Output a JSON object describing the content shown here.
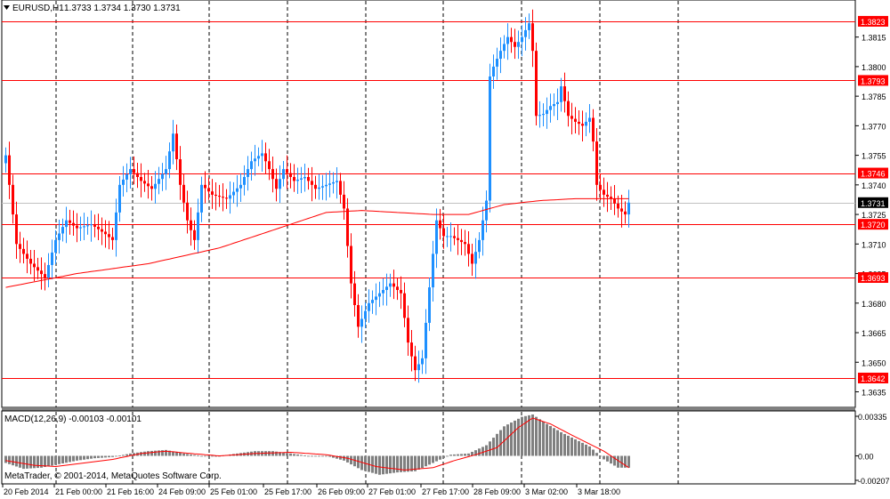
{
  "header": {
    "menu_icon": "triangle-down-icon",
    "symbol": "EURUSD,H1",
    "ohlc": "1.3733 1.3734 1.3730 1.3731"
  },
  "colors": {
    "background": "#ffffff",
    "bull_candle": "#1e90ff",
    "bear_candle": "#ff0000",
    "moving_average": "#ff0000",
    "level_line": "#ff0000",
    "grid": "#000000",
    "current_price_tag": "#000000",
    "current_price_line": "#c0c0c0",
    "macd_histogram": "#808080",
    "macd_signal": "#ff0000"
  },
  "chart_data": [
    {
      "type": "candlestick",
      "series": [
        {
          "name": "EURUSD,H1",
          "type": "candles"
        },
        {
          "type": "moving_average"
        }
      ],
      "ylim": [
        1.3628,
        1.3832
      ],
      "y_ticks": [
        "1.3823",
        "1.3815",
        "1.3800",
        "1.3793",
        "1.3785",
        "1.3770",
        "1.3755",
        "1.3746",
        "1.3740",
        "1.3731",
        "1.3725",
        "1.3720",
        "1.3710",
        "1.3695",
        "1.3693",
        "1.3680",
        "1.3665",
        "1.3650",
        "1.3642",
        "1.3635"
      ],
      "horizontal_levels": [
        1.3823,
        1.3793,
        1.3746,
        1.372,
        1.3693,
        1.3642
      ],
      "current_price": 1.3731,
      "x_tick_labels": [
        "20 Feb 2014",
        "21 Feb 00:00",
        "21 Feb 16:00",
        "24 Feb 09:00",
        "25 Feb 01:00",
        "25 Feb 17:00",
        "26 Feb 09:00",
        "27 Feb 01:00",
        "27 Feb 17:00",
        "28 Feb 09:00",
        "3 Mar 02:00",
        "3 Mar 18:00"
      ],
      "grid": "vertical-dashed",
      "candles_count": 176,
      "candle_anchor_closes": [
        [
          0,
          1.3755
        ],
        [
          3,
          1.371
        ],
        [
          7,
          1.37
        ],
        [
          11,
          1.3693
        ],
        [
          14,
          1.3712
        ],
        [
          17,
          1.3722
        ],
        [
          20,
          1.3718
        ],
        [
          24,
          1.372
        ],
        [
          28,
          1.3715
        ],
        [
          30,
          1.3712
        ],
        [
          32,
          1.374
        ],
        [
          35,
          1.3748
        ],
        [
          38,
          1.3742
        ],
        [
          41,
          1.3738
        ],
        [
          45,
          1.3748
        ],
        [
          47,
          1.3766
        ],
        [
          49,
          1.374
        ],
        [
          51,
          1.3722
        ],
        [
          53,
          1.3712
        ],
        [
          55,
          1.374
        ],
        [
          58,
          1.3735
        ],
        [
          62,
          1.3733
        ],
        [
          66,
          1.374
        ],
        [
          69,
          1.3752
        ],
        [
          72,
          1.3756
        ],
        [
          74,
          1.3748
        ],
        [
          76,
          1.3738
        ],
        [
          78,
          1.3748
        ],
        [
          81,
          1.3742
        ],
        [
          84,
          1.3744
        ],
        [
          87,
          1.3738
        ],
        [
          90,
          1.374
        ],
        [
          93,
          1.3742
        ],
        [
          95,
          1.3728
        ],
        [
          97,
          1.369
        ],
        [
          99,
          1.3668
        ],
        [
          102,
          1.368
        ],
        [
          105,
          1.3685
        ],
        [
          108,
          1.369
        ],
        [
          111,
          1.3685
        ],
        [
          113,
          1.366
        ],
        [
          115,
          1.3646
        ],
        [
          117,
          1.3652
        ],
        [
          119,
          1.3688
        ],
        [
          121,
          1.3722
        ],
        [
          123,
          1.3714
        ],
        [
          125,
          1.3714
        ],
        [
          127,
          1.3712
        ],
        [
          129,
          1.371
        ],
        [
          131,
          1.37
        ],
        [
          133,
          1.3712
        ],
        [
          135,
          1.3732
        ],
        [
          136,
          1.3795
        ],
        [
          137,
          1.38
        ],
        [
          139,
          1.3808
        ],
        [
          141,
          1.3815
        ],
        [
          143,
          1.381
        ],
        [
          145,
          1.3815
        ],
        [
          147,
          1.3822
        ],
        [
          148,
          1.3808
        ],
        [
          149,
          1.3775
        ],
        [
          151,
          1.3776
        ],
        [
          153,
          1.378
        ],
        [
          155,
          1.3782
        ],
        [
          156,
          1.379
        ],
        [
          158,
          1.3775
        ],
        [
          160,
          1.3772
        ],
        [
          162,
          1.377
        ],
        [
          164,
          1.3774
        ],
        [
          165,
          1.3762
        ],
        [
          166,
          1.374
        ],
        [
          168,
          1.3735
        ],
        [
          170,
          1.3733
        ],
        [
          172,
          1.3728
        ],
        [
          174,
          1.3725
        ],
        [
          175,
          1.3731
        ]
      ],
      "moving_average_anchors": [
        [
          0,
          1.3688
        ],
        [
          20,
          1.3695
        ],
        [
          40,
          1.37
        ],
        [
          60,
          1.3708
        ],
        [
          80,
          1.372
        ],
        [
          90,
          1.3726
        ],
        [
          100,
          1.3727
        ],
        [
          110,
          1.3726
        ],
        [
          120,
          1.3725
        ],
        [
          130,
          1.3725
        ],
        [
          140,
          1.373
        ],
        [
          150,
          1.3732
        ],
        [
          160,
          1.3733
        ],
        [
          175,
          1.3733
        ]
      ]
    },
    {
      "type": "histogram",
      "title": "MACD(12,26,9) -0.00103 -0.00101",
      "series": [
        {
          "name": "MACD",
          "type": "bars"
        },
        {
          "name": "Signal",
          "type": "line"
        }
      ],
      "ylim": [
        -0.00207,
        0.00335
      ],
      "y_ticks": [
        "0.00335",
        "0.00",
        "-0.00207"
      ],
      "macd_anchors": [
        [
          0,
          -0.0006
        ],
        [
          5,
          -0.0011
        ],
        [
          10,
          -0.001
        ],
        [
          15,
          -0.0007
        ],
        [
          20,
          -0.0004
        ],
        [
          25,
          -0.0002
        ],
        [
          30,
          -0.0001
        ],
        [
          35,
          0.0002
        ],
        [
          40,
          0.0004
        ],
        [
          45,
          0.0005
        ],
        [
          50,
          0.0002
        ],
        [
          55,
          0.0
        ],
        [
          60,
          0.0
        ],
        [
          65,
          0.0002
        ],
        [
          70,
          0.0004
        ],
        [
          75,
          0.0004
        ],
        [
          80,
          0.0002
        ],
        [
          85,
          0.0
        ],
        [
          90,
          0.0
        ],
        [
          95,
          -0.0004
        ],
        [
          100,
          -0.0012
        ],
        [
          105,
          -0.0016
        ],
        [
          110,
          -0.0014
        ],
        [
          115,
          -0.0013
        ],
        [
          120,
          -0.0006
        ],
        [
          125,
          0.0001
        ],
        [
          130,
          0.0002
        ],
        [
          135,
          0.0009
        ],
        [
          140,
          0.0025
        ],
        [
          145,
          0.0033
        ],
        [
          148,
          0.0035
        ],
        [
          152,
          0.0027
        ],
        [
          156,
          0.002
        ],
        [
          160,
          0.0014
        ],
        [
          164,
          0.0008
        ],
        [
          168,
          -0.0003
        ],
        [
          172,
          -0.001
        ],
        [
          175,
          -0.001
        ]
      ],
      "signal_anchors": [
        [
          0,
          -0.0004
        ],
        [
          8,
          -0.0008
        ],
        [
          14,
          -0.0009
        ],
        [
          22,
          -0.0006
        ],
        [
          30,
          -0.0003
        ],
        [
          38,
          0.0002
        ],
        [
          45,
          0.0004
        ],
        [
          52,
          0.0002
        ],
        [
          60,
          0.0
        ],
        [
          70,
          0.0002
        ],
        [
          80,
          0.0003
        ],
        [
          90,
          0.0001
        ],
        [
          96,
          -0.0002
        ],
        [
          104,
          -0.0009
        ],
        [
          112,
          -0.0012
        ],
        [
          120,
          -0.001
        ],
        [
          126,
          -0.0004
        ],
        [
          132,
          0.0001
        ],
        [
          138,
          0.0007
        ],
        [
          144,
          0.0024
        ],
        [
          148,
          0.0032
        ],
        [
          153,
          0.0027
        ],
        [
          160,
          0.0016
        ],
        [
          168,
          0.0004
        ],
        [
          175,
          -0.001
        ]
      ]
    }
  ],
  "copyright": "MetaTrader, © 2001-2014, MetaQuotes Software Corp."
}
